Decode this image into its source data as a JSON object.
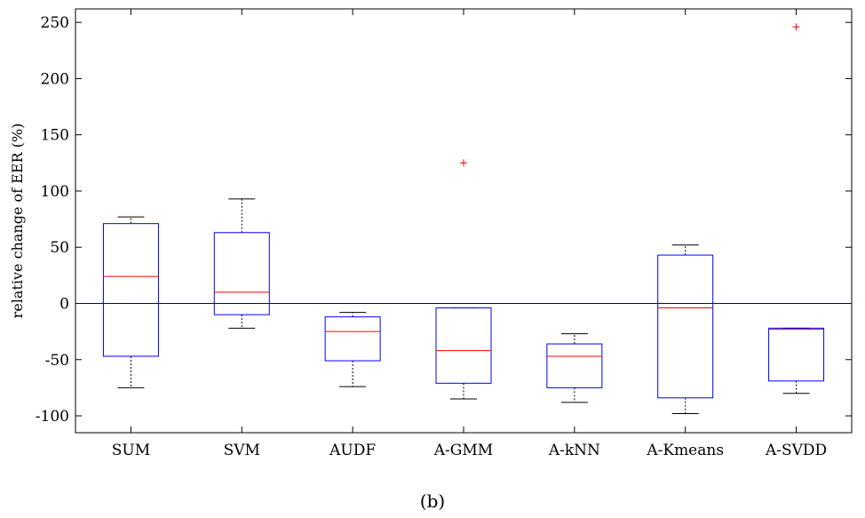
{
  "caption": "(b)",
  "chart_data": {
    "type": "box",
    "ylabel": "relative change of EER (%)",
    "xlabel": "",
    "ylim": [
      -115,
      262
    ],
    "yticks": [
      250,
      200,
      150,
      100,
      50,
      0,
      -50,
      -100
    ],
    "reference_line": 0,
    "grid": false,
    "colors": {
      "box": "#0000ff",
      "median": "#ff0000",
      "whisker": "#000000",
      "outlier": "#ff0000",
      "reference": "#00007f"
    },
    "categories": [
      "SUM",
      "SVM",
      "AUDF",
      "A-GMM",
      "A-kNN",
      "A-Kmeans",
      "A-SVDD"
    ],
    "boxes": [
      {
        "label": "SUM",
        "whisker_low": -75,
        "q1": -47,
        "median": 24,
        "q3": 71,
        "whisker_high": 77,
        "outliers": []
      },
      {
        "label": "SVM",
        "whisker_low": -22,
        "q1": -10,
        "median": 10,
        "q3": 63,
        "whisker_high": 93,
        "outliers": []
      },
      {
        "label": "AUDF",
        "whisker_low": -74,
        "q1": -51,
        "median": -25,
        "q3": -12,
        "whisker_high": -8,
        "outliers": []
      },
      {
        "label": "A-GMM",
        "whisker_low": -85,
        "q1": -71,
        "median": -42,
        "q3": -4,
        "whisker_high": -4,
        "outliers": [
          125
        ]
      },
      {
        "label": "A-kNN",
        "whisker_low": -88,
        "q1": -75,
        "median": -47,
        "q3": -36,
        "whisker_high": -27,
        "outliers": []
      },
      {
        "label": "A-Kmeans",
        "whisker_low": -98,
        "q1": -84,
        "median": -4,
        "q3": 43,
        "whisker_high": 52,
        "outliers": []
      },
      {
        "label": "A-SVDD",
        "whisker_low": -80,
        "q1": -69,
        "median": -23,
        "q3": -22,
        "whisker_high": -22,
        "outliers": [
          246
        ]
      }
    ]
  }
}
